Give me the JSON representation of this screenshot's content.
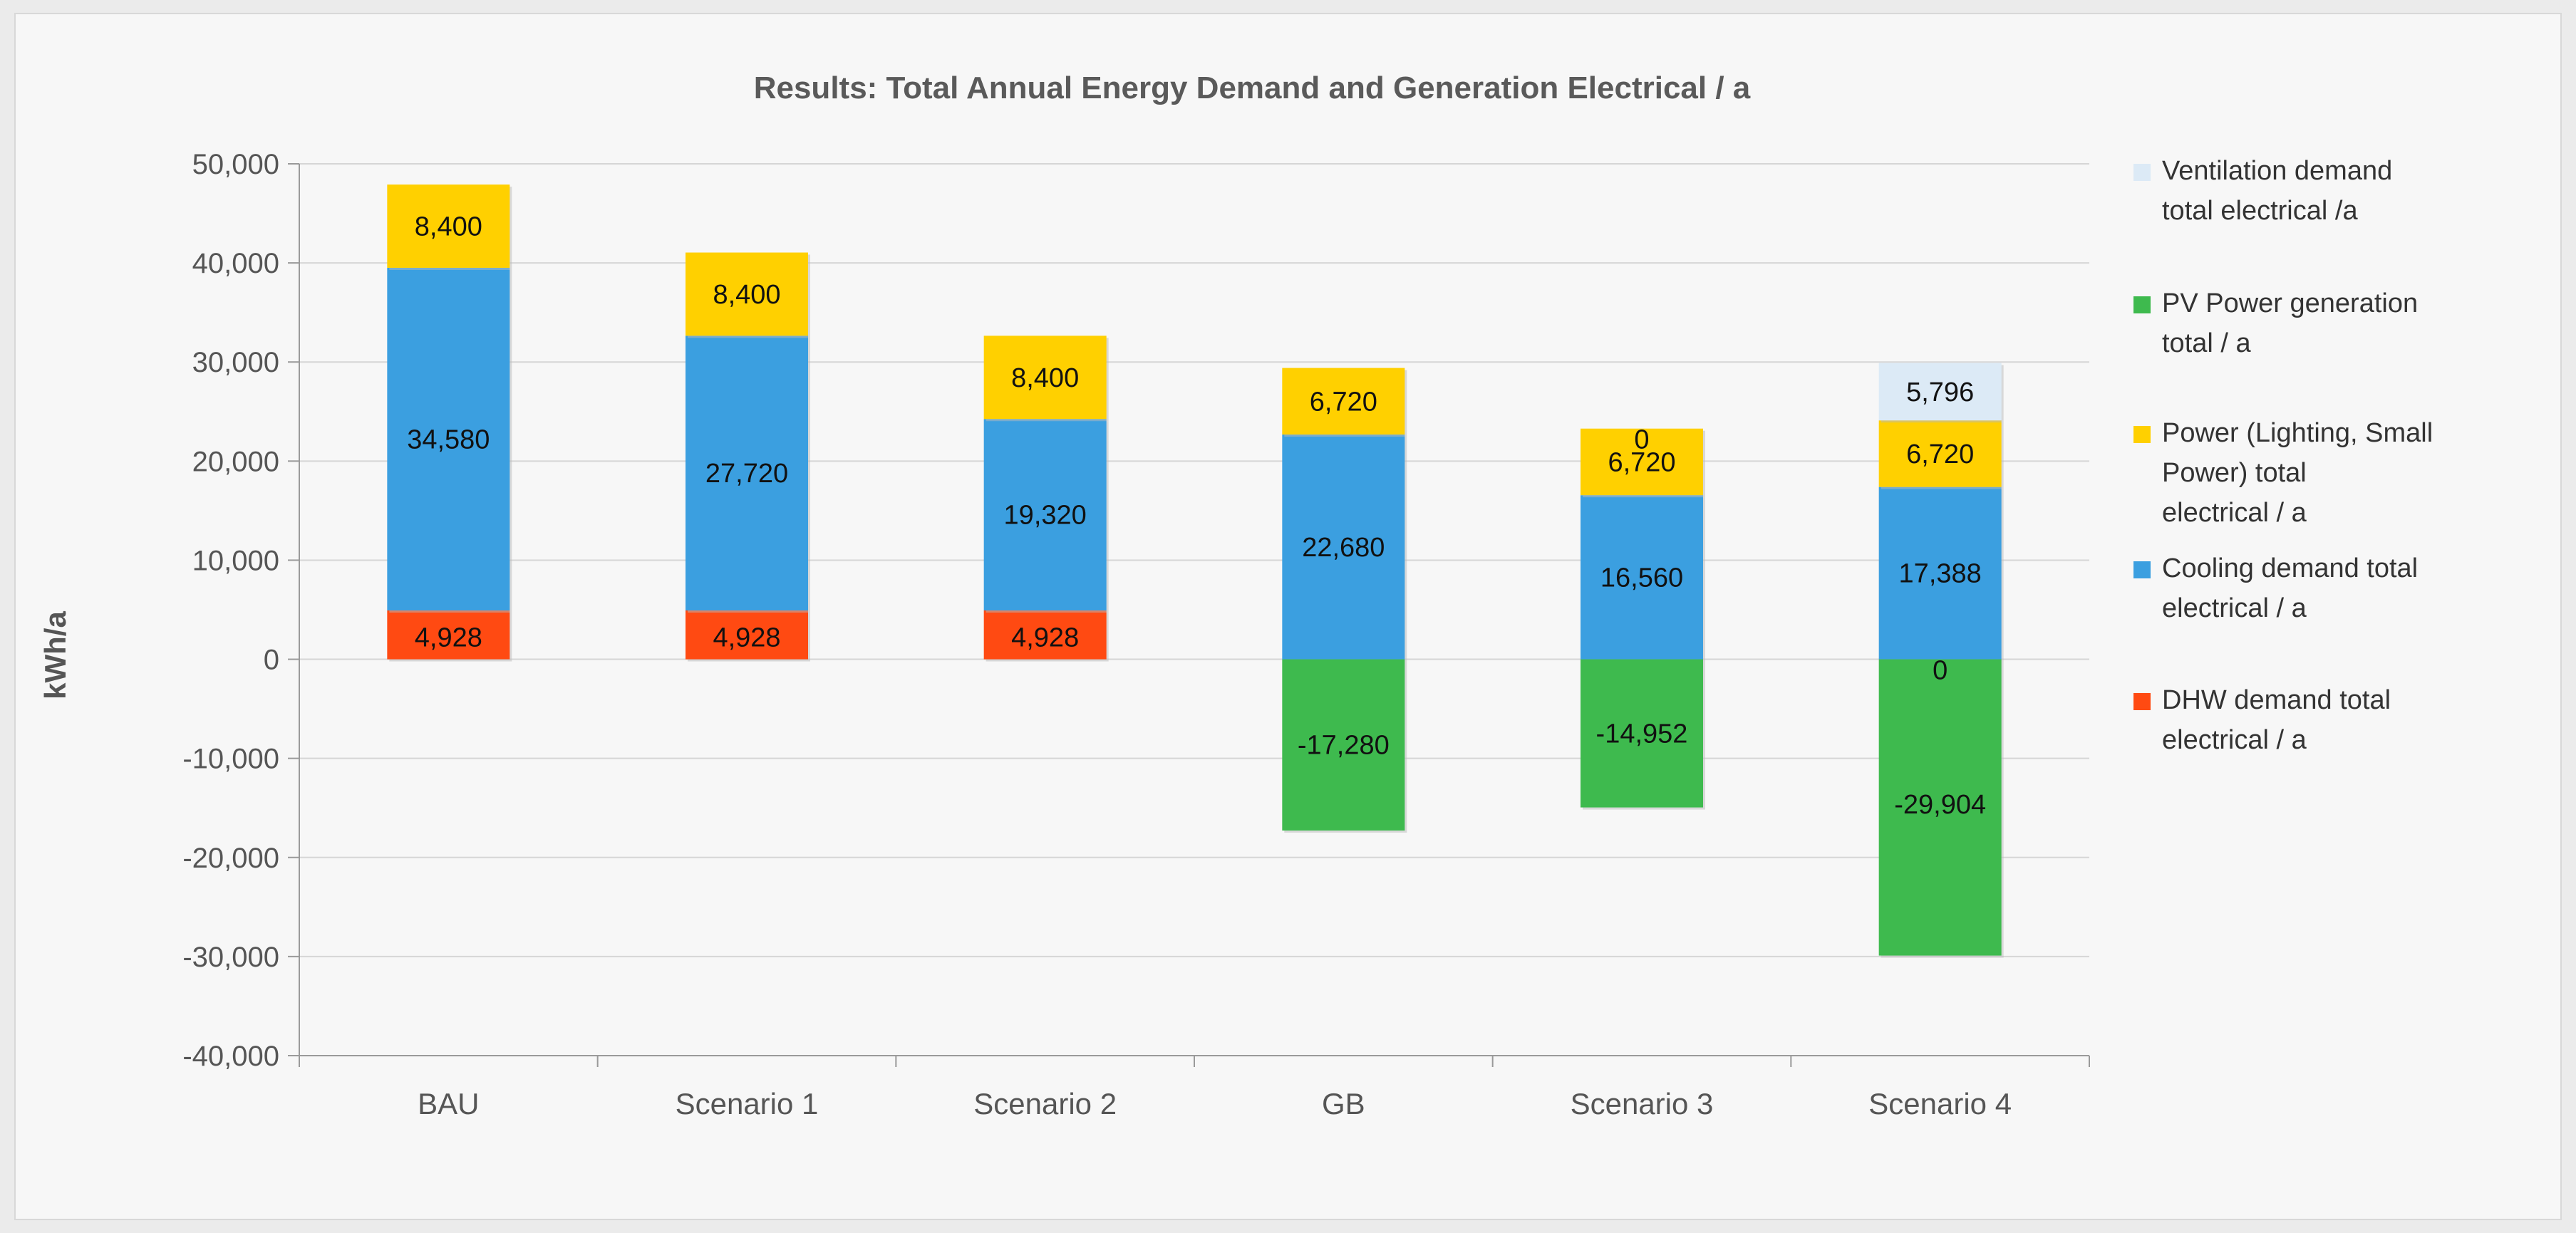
{
  "chart_data": {
    "type": "bar",
    "stacked": true,
    "title": "Results: Total Annual Energy Demand and Generation Electrical / a",
    "xlabel": "",
    "ylabel": "kWh/a",
    "ylim": [
      -40000,
      50000
    ],
    "yticks": [
      50000,
      40000,
      30000,
      20000,
      10000,
      0,
      -10000,
      -20000,
      -30000,
      -40000
    ],
    "ytick_labels": [
      "50,000",
      "40,000",
      "30,000",
      "20,000",
      "10,000",
      "0",
      "-10,000",
      "-20,000",
      "-30,000",
      "-40,000"
    ],
    "grid": true,
    "legend_position": "right",
    "categories": [
      "BAU",
      "Scenario 1",
      "Scenario 2",
      "GB",
      "Scenario 3",
      "Scenario 4"
    ],
    "series": [
      {
        "name": "DHW demand total electrical / a",
        "legend_lines": [
          "DHW demand total",
          "electrical / a"
        ],
        "color": "#ff4a12",
        "values": [
          4928,
          4928,
          4928,
          0,
          0,
          0
        ],
        "labels": [
          "4,928",
          "4,928",
          "4,928",
          "",
          "",
          ""
        ]
      },
      {
        "name": "Cooling demand total electrical / a",
        "legend_lines": [
          "Cooling demand total",
          "electrical / a"
        ],
        "color": "#3b9fe0",
        "values": [
          34580,
          27720,
          19320,
          22680,
          16560,
          17388
        ],
        "labels": [
          "34,580",
          "27,720",
          "19,320",
          "22,680",
          "16,560",
          "17,388"
        ]
      },
      {
        "name": "Power (Lighting, Small Power) total electrical / a",
        "legend_lines": [
          "Power (Lighting, Small",
          "Power) total",
          "electrical / a"
        ],
        "color": "#ffd000",
        "values": [
          8400,
          8400,
          8400,
          6720,
          6720,
          6720
        ],
        "labels": [
          "8,400",
          "8,400",
          "8,400",
          "6,720",
          "6,720",
          "6,720"
        ]
      },
      {
        "name": "PV Power generation total / a",
        "legend_lines": [
          "PV Power generation",
          "total / a"
        ],
        "color": "#3eba4e",
        "values": [
          0,
          0,
          0,
          -17280,
          -14952,
          -29904
        ],
        "labels": [
          "",
          "",
          "",
          "-17,280",
          "-14,952",
          "-29,904"
        ]
      },
      {
        "name": "Ventilation demand total electrical /a",
        "legend_lines": [
          "Ventilation demand",
          "total electrical /a"
        ],
        "color": "#dceaf6",
        "values": [
          0,
          0,
          0,
          0,
          0,
          5796
        ],
        "labels": [
          "",
          "",
          "",
          "",
          "",
          "5,796"
        ]
      }
    ],
    "extra_labels": [
      {
        "category": "Scenario 3",
        "text": "0",
        "anchor": "above-power-bottom"
      },
      {
        "category": "Scenario 4",
        "text": "0",
        "anchor": "just-below-zero"
      }
    ],
    "legend_order": [
      "Ventilation demand total electrical /a",
      "PV Power generation total / a",
      "Power (Lighting, Small Power) total electrical / a",
      "Cooling demand total electrical / a",
      "DHW demand total electrical / a"
    ]
  }
}
